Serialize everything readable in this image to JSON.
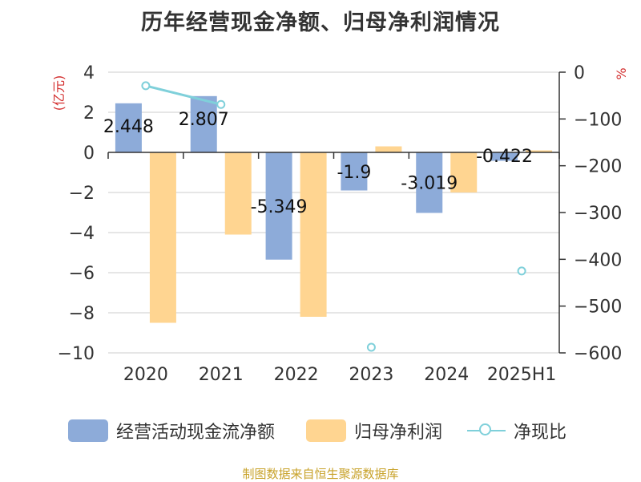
{
  "chart_data": {
    "type": "bar",
    "title": "历年经营现金净额、归母净利润情况",
    "categories": [
      "2020",
      "2021",
      "2022",
      "2023",
      "2024",
      "2025H1"
    ],
    "left_axis": {
      "label": "(亿元)",
      "ticks": [
        "4",
        "2",
        "0",
        "-2",
        "-4",
        "-6",
        "-8",
        "-10"
      ],
      "ylim": [
        -10,
        4
      ]
    },
    "right_axis": {
      "label": "%",
      "ticks": [
        "0",
        "-100",
        "-200",
        "-300",
        "-400",
        "-500",
        "-600"
      ],
      "ylim": [
        -600,
        0
      ]
    },
    "series": [
      {
        "name": "经营活动现金流净额",
        "type": "bar",
        "axis": "left",
        "color": "#8dabd9",
        "values": [
          2.448,
          2.807,
          -5.349,
          -1.9,
          -3.019,
          -0.422
        ],
        "labels": [
          "2.448",
          "2.807",
          "-5.349",
          "-1.9",
          "-3.019",
          "-0.422"
        ]
      },
      {
        "name": "归母净利润",
        "type": "bar",
        "axis": "left",
        "color": "#ffd591",
        "values": [
          -8.5,
          -4.1,
          -8.2,
          0.3,
          -2.0,
          0.1
        ]
      },
      {
        "name": "净现比",
        "type": "line",
        "axis": "right",
        "color": "#7fd0da",
        "values": [
          -29,
          -69,
          null,
          -588,
          null,
          -425
        ]
      }
    ],
    "grid": true,
    "legend_position": "bottom"
  },
  "source": "制图数据来自恒生聚源数据库"
}
